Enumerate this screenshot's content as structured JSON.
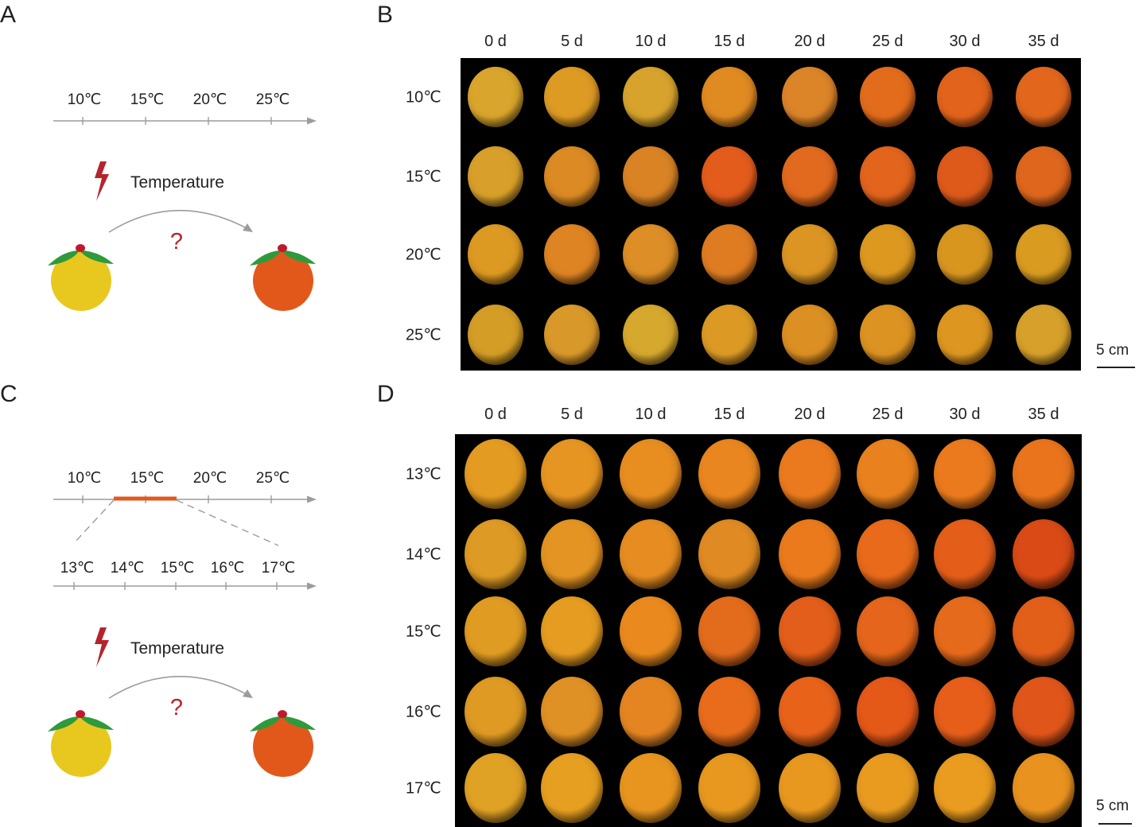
{
  "panel_labels": {
    "a": "A",
    "b": "B",
    "c": "C",
    "d": "D"
  },
  "panel_a": {
    "axis_ticks": [
      "10℃",
      "15℃",
      "20℃",
      "25℃"
    ],
    "factor_label": "Temperature",
    "question": "?"
  },
  "panel_b": {
    "column_labels": [
      "0 d",
      "5 d",
      "10 d",
      "15 d",
      "20 d",
      "25 d",
      "30 d",
      "35 d"
    ],
    "row_labels": [
      "10℃",
      "15℃",
      "20℃",
      "25℃"
    ],
    "fruit_colors": [
      [
        "#d9a52c",
        "#dd9b24",
        "#d7a32d",
        "#e08a22",
        "#dc8428",
        "#e36c1c",
        "#e2631b",
        "#e2671d"
      ],
      [
        "#d8a02a",
        "#db8a24",
        "#d98325",
        "#e35c1c",
        "#e26a1e",
        "#e3641c",
        "#de5a1b",
        "#df661d"
      ],
      [
        "#dd9a22",
        "#de8423",
        "#dd8e26",
        "#df7c22",
        "#dc9523",
        "#dd9820",
        "#d8961f",
        "#d99b20"
      ],
      [
        "#d49d26",
        "#d9992a",
        "#d6a82e",
        "#dc9a25",
        "#dc8f22",
        "#dd9322",
        "#dd9620",
        "#d6a02a"
      ]
    ],
    "scale_label": "5 cm"
  },
  "panel_c": {
    "axis_ticks": [
      "10℃",
      "15℃",
      "20℃",
      "25℃"
    ],
    "zoom_ticks": [
      "13℃",
      "14℃",
      "15℃",
      "16℃",
      "17℃"
    ],
    "factor_label": "Temperature",
    "question": "?",
    "highlight_color": "#e05a1f"
  },
  "panel_d": {
    "column_labels": [
      "0 d",
      "5 d",
      "10 d",
      "15 d",
      "20 d",
      "25 d",
      "30 d",
      "35 d"
    ],
    "row_labels": [
      "13℃",
      "14℃",
      "15℃",
      "16℃",
      "17℃"
    ],
    "fruit_colors": [
      [
        "#e49b22",
        "#e79522",
        "#e88d20",
        "#e9861f",
        "#ea7a1d",
        "#e9821e",
        "#ea7a1d",
        "#e9741c"
      ],
      [
        "#dd9a24",
        "#e49422",
        "#e68c21",
        "#df8a22",
        "#ea7a1c",
        "#e86a1a",
        "#e45e1a",
        "#d94a16"
      ],
      [
        "#e09c22",
        "#e69c21",
        "#ea8a1e",
        "#e36c1c",
        "#e25e1a",
        "#e4651b",
        "#e66a1b",
        "#e25f1a"
      ],
      [
        "#df9a24",
        "#e09125",
        "#e48522",
        "#e86c1b",
        "#e8621a",
        "#e45818",
        "#e65e1a",
        "#e0561a"
      ],
      [
        "#e0a224",
        "#e79f21",
        "#e7951f",
        "#e8981f",
        "#e9981f",
        "#e99b20",
        "#ea9c20",
        "#e9921f"
      ]
    ],
    "scale_label": "5 cm"
  },
  "illustration_colors": {
    "unripe": "#e8c81e",
    "ripe": "#e2581a",
    "leaf": "#2e9a3c",
    "stem": "#c0182e",
    "bolt": "#b5242d",
    "axis": "#9c9c9c"
  }
}
